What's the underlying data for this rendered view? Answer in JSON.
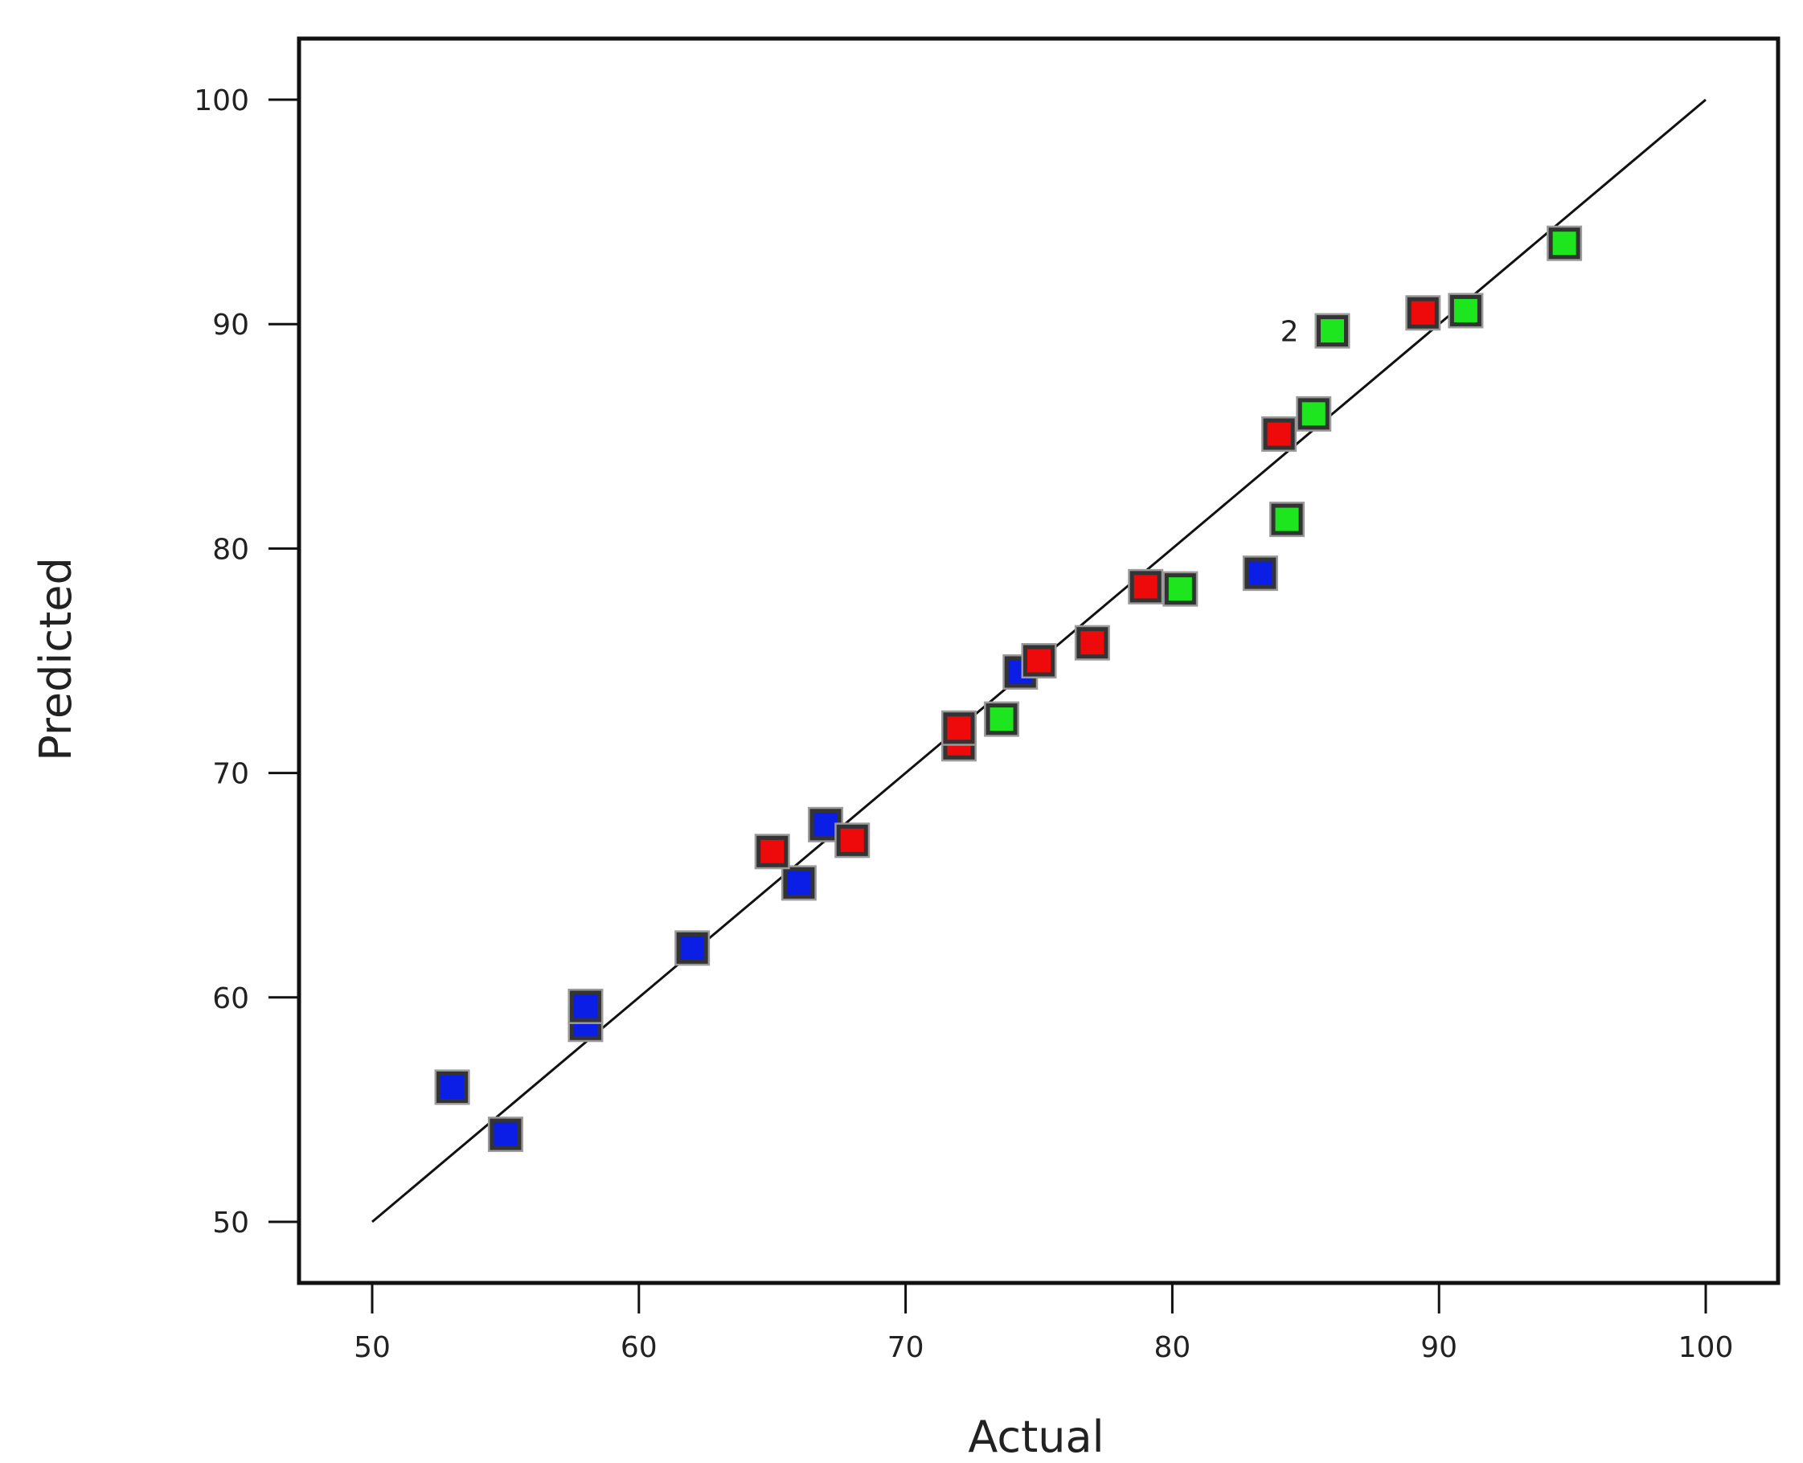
{
  "chart_data": {
    "type": "scatter",
    "title": "",
    "xlabel": "Actual",
    "ylabel": "Predicted",
    "xlim": [
      50,
      100
    ],
    "ylim": [
      50,
      100
    ],
    "xticks": [
      "50",
      "60",
      "70",
      "80",
      "90",
      "100"
    ],
    "yticks": [
      "50",
      "60",
      "70",
      "80",
      "90",
      "100"
    ],
    "grid": false,
    "reference_line": {
      "from": [
        50,
        50
      ],
      "to": [
        100,
        100
      ]
    },
    "colors": {
      "blue": "#0a1ee6",
      "red": "#ee0a0a",
      "green": "#1ee61e",
      "marker_edge": "#333333"
    },
    "points": [
      {
        "x": 53.0,
        "y": 56.0,
        "color": "blue"
      },
      {
        "x": 55.0,
        "y": 53.9,
        "color": "blue"
      },
      {
        "x": 58.0,
        "y": 58.8,
        "color": "blue"
      },
      {
        "x": 58.0,
        "y": 59.6,
        "color": "blue"
      },
      {
        "x": 62.0,
        "y": 62.2,
        "color": "blue"
      },
      {
        "x": 66.0,
        "y": 65.1,
        "color": "blue"
      },
      {
        "x": 67.0,
        "y": 67.7,
        "color": "blue"
      },
      {
        "x": 74.3,
        "y": 74.5,
        "color": "blue"
      },
      {
        "x": 83.3,
        "y": 78.9,
        "color": "blue"
      },
      {
        "x": 65.0,
        "y": 66.5,
        "color": "red"
      },
      {
        "x": 68.0,
        "y": 67.0,
        "color": "red"
      },
      {
        "x": 72.0,
        "y": 71.3,
        "color": "red"
      },
      {
        "x": 72.0,
        "y": 72.0,
        "color": "red"
      },
      {
        "x": 75.0,
        "y": 75.0,
        "color": "red"
      },
      {
        "x": 77.0,
        "y": 75.8,
        "color": "red"
      },
      {
        "x": 79.0,
        "y": 78.3,
        "color": "red"
      },
      {
        "x": 84.0,
        "y": 85.1,
        "color": "red"
      },
      {
        "x": 89.4,
        "y": 90.5,
        "color": "red"
      },
      {
        "x": 73.6,
        "y": 72.4,
        "color": "green"
      },
      {
        "x": 80.3,
        "y": 78.2,
        "color": "green"
      },
      {
        "x": 84.3,
        "y": 81.3,
        "color": "green"
      },
      {
        "x": 85.3,
        "y": 86.0,
        "color": "green"
      },
      {
        "x": 86.0,
        "y": 89.7,
        "color": "green",
        "label": "2"
      },
      {
        "x": 91.0,
        "y": 90.6,
        "color": "green"
      },
      {
        "x": 94.7,
        "y": 93.6,
        "color": "green"
      }
    ]
  }
}
